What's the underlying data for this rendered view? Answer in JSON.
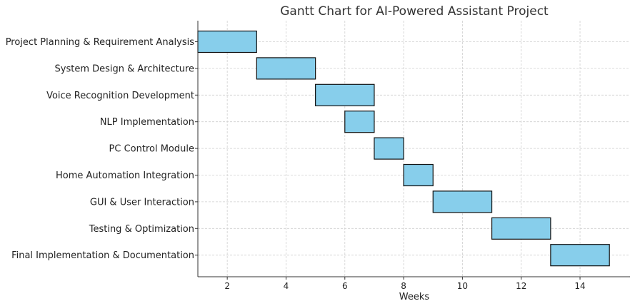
{
  "chart_data": {
    "type": "bar",
    "orientation": "horizontal",
    "title": "Gantt Chart for AI-Powered Assistant Project",
    "xlabel": "Weeks",
    "ylabel": "",
    "xlim": [
      1,
      15.7
    ],
    "x_ticks": [
      2,
      4,
      6,
      8,
      10,
      12,
      14
    ],
    "grid": true,
    "bar_color": "#87CEEB",
    "edge_color": "#111111",
    "tasks": [
      {
        "name": "Project Planning & Requirement Analysis",
        "start": 1,
        "end": 3
      },
      {
        "name": "System Design & Architecture",
        "start": 3,
        "end": 5
      },
      {
        "name": "Voice Recognition Development",
        "start": 5,
        "end": 7
      },
      {
        "name": "NLP Implementation",
        "start": 6,
        "end": 7
      },
      {
        "name": "PC Control Module",
        "start": 7,
        "end": 8
      },
      {
        "name": "Home Automation Integration",
        "start": 8,
        "end": 9
      },
      {
        "name": "GUI & User Interaction",
        "start": 9,
        "end": 11
      },
      {
        "name": "Testing & Optimization",
        "start": 11,
        "end": 13
      },
      {
        "name": "Final Implementation & Documentation",
        "start": 13,
        "end": 15
      }
    ]
  }
}
